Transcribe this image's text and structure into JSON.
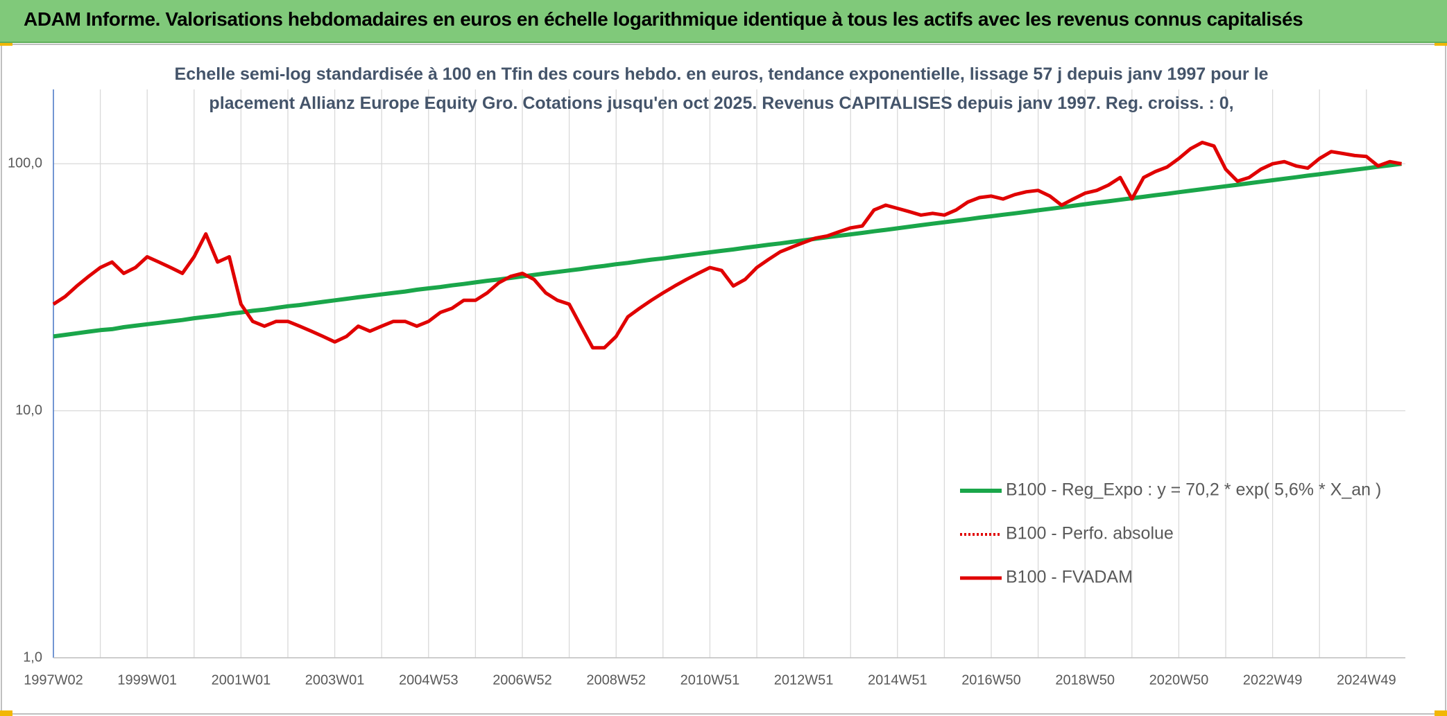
{
  "chart_data": {
    "type": "line",
    "title": "ADAM Informe. Valorisations hebdomadaires en euros en échelle logarithmique identique à tous les actifs avec les revenus connus capitalisés",
    "subtitle": [
      "Echelle semi-log standardisée à 100 en Tfin des cours hebdo. en euros, tendance exponentielle, lissage 57 j depuis janv 1997 pour le",
      "placement Allianz Europe Equity Gro. Cotations jusqu'en oct 2025. Revenus CAPITALISES depuis janv 1997. Reg. croiss. : 0,"
    ],
    "log_scale": true,
    "grid": true,
    "legend": "lower right",
    "ylim": [
      1,
      200
    ],
    "yticks": [
      {
        "value": 1,
        "label": "1,0"
      },
      {
        "value": 10,
        "label": "10,0"
      },
      {
        "value": 100,
        "label": "100,0"
      }
    ],
    "categories": [
      "1997W02",
      null,
      null,
      null,
      null,
      null,
      null,
      null,
      "1999W01",
      null,
      null,
      null,
      null,
      null,
      null,
      null,
      "2001W01",
      null,
      null,
      null,
      null,
      null,
      null,
      null,
      "2003W01",
      null,
      null,
      null,
      null,
      null,
      null,
      null,
      "2004W53",
      null,
      null,
      null,
      null,
      null,
      null,
      null,
      "2006W52",
      null,
      null,
      null,
      null,
      null,
      null,
      null,
      "2008W52",
      null,
      null,
      null,
      null,
      null,
      null,
      null,
      "2010W51",
      null,
      null,
      null,
      null,
      null,
      null,
      null,
      "2012W51",
      null,
      null,
      null,
      null,
      null,
      null,
      null,
      "2014W51",
      null,
      null,
      null,
      null,
      null,
      null,
      null,
      "2016W50",
      null,
      null,
      null,
      null,
      null,
      null,
      null,
      "2018W50",
      null,
      null,
      null,
      null,
      null,
      null,
      null,
      "2020W50",
      null,
      null,
      null,
      null,
      null,
      null,
      null,
      "2022W49",
      null,
      null,
      null,
      null,
      null,
      null,
      null,
      "2024W49",
      null,
      null,
      null
    ],
    "series": [
      {
        "name": "B100 - Reg_Expo : y = 70,2 * exp( 5,6% *  X_an )",
        "color": "#1aa64a",
        "line_style": "solid",
        "values": [
          20.0,
          20.3,
          20.6,
          20.9,
          21.2,
          21.4,
          21.8,
          22.1,
          22.4,
          22.7,
          23.0,
          23.3,
          23.7,
          24.0,
          24.3,
          24.7,
          25.0,
          25.4,
          25.7,
          26.1,
          26.5,
          26.8,
          27.2,
          27.6,
          28.0,
          28.4,
          28.8,
          29.2,
          29.6,
          30.0,
          30.4,
          30.9,
          31.3,
          31.7,
          32.2,
          32.6,
          33.1,
          33.6,
          34.0,
          34.5,
          35.0,
          35.5,
          36.0,
          36.5,
          37.0,
          37.5,
          38.1,
          38.6,
          39.2,
          39.7,
          40.3,
          40.9,
          41.4,
          42.0,
          42.6,
          43.2,
          43.8,
          44.4,
          45.0,
          45.7,
          46.3,
          47.0,
          47.6,
          48.3,
          49.0,
          49.7,
          50.4,
          51.1,
          51.8,
          52.5,
          53.3,
          54.0,
          54.8,
          55.6,
          56.4,
          57.2,
          58.0,
          58.8,
          59.6,
          60.5,
          61.3,
          62.2,
          63.0,
          63.9,
          64.8,
          65.7,
          66.6,
          67.6,
          68.6,
          69.6,
          70.5,
          71.5,
          72.5,
          73.5,
          74.6,
          75.6,
          76.7,
          77.8,
          78.9,
          80.0,
          81.1,
          82.2,
          83.4,
          84.6,
          85.8,
          87.0,
          88.2,
          89.5,
          90.7,
          92.0,
          93.3,
          94.6,
          95.9,
          97.3,
          98.6,
          100.0
        ]
      },
      {
        "name": "B100 - Perfo. absolue",
        "color": "#e00000",
        "line_style": "dotted",
        "values": [
          27,
          29,
          32,
          35,
          38,
          40,
          36,
          38,
          42,
          40,
          38,
          36,
          42,
          52,
          40,
          42,
          27,
          23,
          22,
          23,
          23,
          22,
          21,
          20,
          19,
          20,
          22,
          21,
          22,
          23,
          23,
          22,
          23,
          25,
          26,
          28,
          28,
          30,
          33,
          35,
          36,
          34,
          30,
          28,
          27,
          22,
          18,
          18,
          20,
          24,
          26,
          28,
          30,
          32,
          34,
          36,
          38,
          37,
          32,
          34,
          38,
          41,
          44,
          46,
          48,
          50,
          51,
          53,
          55,
          56,
          65,
          68,
          66,
          64,
          62,
          63,
          62,
          65,
          70,
          73,
          74,
          72,
          75,
          77,
          78,
          74,
          68,
          72,
          76,
          78,
          82,
          88,
          72,
          88,
          93,
          97,
          105,
          115,
          122,
          118,
          95,
          85,
          88,
          95,
          100,
          102,
          98,
          96,
          105,
          112,
          110,
          108,
          107,
          98,
          102,
          100
        ]
      },
      {
        "name": "B100 - FVADAM",
        "color": "#e00000",
        "line_style": "solid",
        "values": [
          27,
          29,
          32,
          35,
          38,
          40,
          36,
          38,
          42,
          40,
          38,
          36,
          42,
          52,
          40,
          42,
          27,
          23,
          22,
          23,
          23,
          22,
          21,
          20,
          19,
          20,
          22,
          21,
          22,
          23,
          23,
          22,
          23,
          25,
          26,
          28,
          28,
          30,
          33,
          35,
          36,
          34,
          30,
          28,
          27,
          22,
          18,
          18,
          20,
          24,
          26,
          28,
          30,
          32,
          34,
          36,
          38,
          37,
          32,
          34,
          38,
          41,
          44,
          46,
          48,
          50,
          51,
          53,
          55,
          56,
          65,
          68,
          66,
          64,
          62,
          63,
          62,
          65,
          70,
          73,
          74,
          72,
          75,
          77,
          78,
          74,
          68,
          72,
          76,
          78,
          82,
          88,
          72,
          88,
          93,
          97,
          105,
          115,
          122,
          118,
          95,
          85,
          88,
          95,
          100,
          102,
          98,
          96,
          105,
          112,
          110,
          108,
          107,
          98,
          102,
          100
        ]
      }
    ]
  }
}
